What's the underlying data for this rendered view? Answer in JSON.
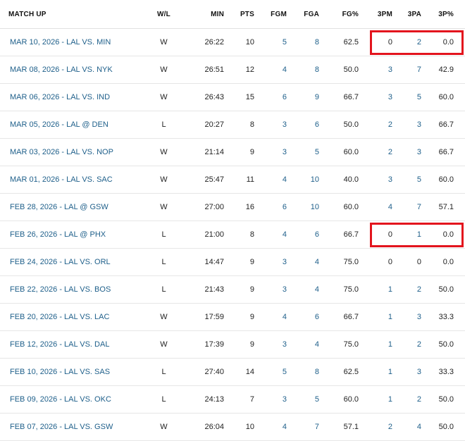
{
  "columns": {
    "match_up": "MATCH UP",
    "wl": "W/L",
    "min": "MIN",
    "pts": "PTS",
    "fgm": "FGM",
    "fga": "FGA",
    "fg_pct": "FG%",
    "tpm": "3PM",
    "tpa": "3PA",
    "tp_pct": "3P%"
  },
  "colors": {
    "link": "#1e5f8a",
    "highlight": "#e3141d"
  },
  "rows": [
    {
      "match_up": "MAR 10, 2026 - LAL VS. MIN",
      "wl": "W",
      "min": "26:22",
      "pts": "10",
      "fgm": "5",
      "fga": "8",
      "fg_pct": "62.5",
      "tpm": "0",
      "tpa": "2",
      "tp_pct": "0.0",
      "highlighted": true
    },
    {
      "match_up": "MAR 08, 2026 - LAL VS. NYK",
      "wl": "W",
      "min": "26:51",
      "pts": "12",
      "fgm": "4",
      "fga": "8",
      "fg_pct": "50.0",
      "tpm": "3",
      "tpa": "7",
      "tp_pct": "42.9"
    },
    {
      "match_up": "MAR 06, 2026 - LAL VS. IND",
      "wl": "W",
      "min": "26:43",
      "pts": "15",
      "fgm": "6",
      "fga": "9",
      "fg_pct": "66.7",
      "tpm": "3",
      "tpa": "5",
      "tp_pct": "60.0"
    },
    {
      "match_up": "MAR 05, 2026 - LAL @ DEN",
      "wl": "L",
      "min": "20:27",
      "pts": "8",
      "fgm": "3",
      "fga": "6",
      "fg_pct": "50.0",
      "tpm": "2",
      "tpa": "3",
      "tp_pct": "66.7"
    },
    {
      "match_up": "MAR 03, 2026 - LAL VS. NOP",
      "wl": "W",
      "min": "21:14",
      "pts": "9",
      "fgm": "3",
      "fga": "5",
      "fg_pct": "60.0",
      "tpm": "2",
      "tpa": "3",
      "tp_pct": "66.7"
    },
    {
      "match_up": "MAR 01, 2026 - LAL VS. SAC",
      "wl": "W",
      "min": "25:47",
      "pts": "11",
      "fgm": "4",
      "fga": "10",
      "fg_pct": "40.0",
      "tpm": "3",
      "tpa": "5",
      "tp_pct": "60.0"
    },
    {
      "match_up": "FEB 28, 2026 - LAL @ GSW",
      "wl": "W",
      "min": "27:00",
      "pts": "16",
      "fgm": "6",
      "fga": "10",
      "fg_pct": "60.0",
      "tpm": "4",
      "tpa": "7",
      "tp_pct": "57.1"
    },
    {
      "match_up": "FEB 26, 2026 - LAL @ PHX",
      "wl": "L",
      "min": "21:00",
      "pts": "8",
      "fgm": "4",
      "fga": "6",
      "fg_pct": "66.7",
      "tpm": "0",
      "tpa": "1",
      "tp_pct": "0.0",
      "highlighted": true
    },
    {
      "match_up": "FEB 24, 2026 - LAL VS. ORL",
      "wl": "L",
      "min": "14:47",
      "pts": "9",
      "fgm": "3",
      "fga": "4",
      "fg_pct": "75.0",
      "tpm": "0",
      "tpa": "0",
      "tp_pct": "0.0"
    },
    {
      "match_up": "FEB 22, 2026 - LAL VS. BOS",
      "wl": "L",
      "min": "21:43",
      "pts": "9",
      "fgm": "3",
      "fga": "4",
      "fg_pct": "75.0",
      "tpm": "1",
      "tpa": "2",
      "tp_pct": "50.0"
    },
    {
      "match_up": "FEB 20, 2026 - LAL VS. LAC",
      "wl": "W",
      "min": "17:59",
      "pts": "9",
      "fgm": "4",
      "fga": "6",
      "fg_pct": "66.7",
      "tpm": "1",
      "tpa": "3",
      "tp_pct": "33.3"
    },
    {
      "match_up": "FEB 12, 2026 - LAL VS. DAL",
      "wl": "W",
      "min": "17:39",
      "pts": "9",
      "fgm": "3",
      "fga": "4",
      "fg_pct": "75.0",
      "tpm": "1",
      "tpa": "2",
      "tp_pct": "50.0"
    },
    {
      "match_up": "FEB 10, 2026 - LAL VS. SAS",
      "wl": "L",
      "min": "27:40",
      "pts": "14",
      "fgm": "5",
      "fga": "8",
      "fg_pct": "62.5",
      "tpm": "1",
      "tpa": "3",
      "tp_pct": "33.3"
    },
    {
      "match_up": "FEB 09, 2026 - LAL VS. OKC",
      "wl": "L",
      "min": "24:13",
      "pts": "7",
      "fgm": "3",
      "fga": "5",
      "fg_pct": "60.0",
      "tpm": "1",
      "tpa": "2",
      "tp_pct": "50.0"
    },
    {
      "match_up": "FEB 07, 2026 - LAL VS. GSW",
      "wl": "W",
      "min": "26:04",
      "pts": "10",
      "fgm": "4",
      "fga": "7",
      "fg_pct": "57.1",
      "tpm": "2",
      "tpa": "4",
      "tp_pct": "50.0"
    }
  ]
}
